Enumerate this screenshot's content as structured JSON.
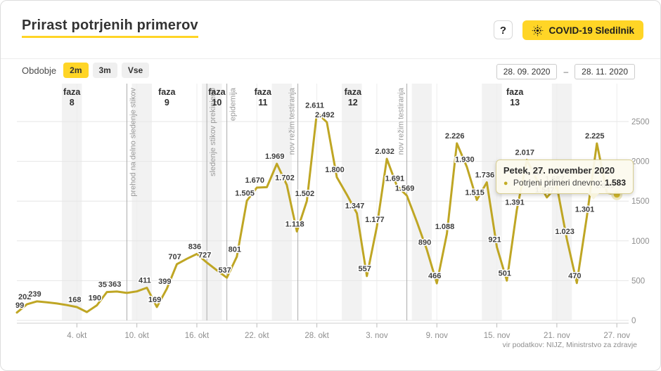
{
  "header": {
    "title": "Prirast potrjenih primerov",
    "help_label": "?",
    "brand_label": "COVID-19 Sledilnik"
  },
  "controls": {
    "period_label": "Obdobje",
    "periods": [
      "2m",
      "3m",
      "Vse"
    ],
    "active_period": "2m",
    "date_from": "28. 09. 2020",
    "date_separator": "–",
    "date_to": "28. 11. 2020"
  },
  "tooltip": {
    "title": "Petek, 27. november 2020",
    "series_label": "Potrjeni primeri dnevno:",
    "value": "1.583"
  },
  "footer": {
    "source": "vir podatkov: NIJZ, Ministrstvo za zdravje"
  },
  "colors": {
    "accent": "#ffd526",
    "line": "#bfa624",
    "marker": "#d4ba28",
    "marker_halo": "#ece5b4",
    "weekend_band": "#f2f2f2",
    "grid": "#e6e6e6",
    "vgrid": "#ededed",
    "phase_line": "#ababab",
    "axis_line": "#cfcfcf",
    "annotation_text": "#9a9a9a",
    "label_text": "#3d3d3d"
  },
  "chart_data": {
    "type": "line",
    "title": "Prirast potrjenih primerov",
    "series_name": "Potrjeni primeri dnevno",
    "x_tick_labels": [
      "4. okt",
      "10. okt",
      "16. okt",
      "22. okt",
      "28. okt",
      "3. nov",
      "9. nov",
      "15. nov",
      "21. nov",
      "27. nov"
    ],
    "x_tick_days": [
      6,
      12,
      18,
      24,
      30,
      36,
      42,
      48,
      54,
      60
    ],
    "y_ticks": [
      0,
      500,
      1000,
      1500,
      2000,
      2500
    ],
    "ylim": [
      0,
      2980
    ],
    "grid": true,
    "dates": [
      "2020-09-28",
      "2020-09-29",
      "2020-09-30",
      "2020-10-01",
      "2020-10-02",
      "2020-10-03",
      "2020-10-04",
      "2020-10-05",
      "2020-10-06",
      "2020-10-07",
      "2020-10-08",
      "2020-10-09",
      "2020-10-10",
      "2020-10-11",
      "2020-10-12",
      "2020-10-13",
      "2020-10-14",
      "2020-10-15",
      "2020-10-16",
      "2020-10-17",
      "2020-10-18",
      "2020-10-19",
      "2020-10-20",
      "2020-10-21",
      "2020-10-22",
      "2020-10-23",
      "2020-10-24",
      "2020-10-25",
      "2020-10-26",
      "2020-10-27",
      "2020-10-28",
      "2020-10-29",
      "2020-10-30",
      "2020-10-31",
      "2020-11-01",
      "2020-11-02",
      "2020-11-03",
      "2020-11-04",
      "2020-11-05",
      "2020-11-06",
      "2020-11-07",
      "2020-11-08",
      "2020-11-09",
      "2020-11-10",
      "2020-11-11",
      "2020-11-12",
      "2020-11-13",
      "2020-11-14",
      "2020-11-15",
      "2020-11-16",
      "2020-11-17",
      "2020-11-18",
      "2020-11-19",
      "2020-11-20",
      "2020-11-21",
      "2020-11-22",
      "2020-11-23",
      "2020-11-24",
      "2020-11-25",
      "2020-11-26",
      "2020-11-27"
    ],
    "values": [
      99,
      202,
      239,
      228,
      213,
      193,
      168,
      105,
      190,
      357,
      363,
      345,
      365,
      411,
      169,
      399,
      707,
      775,
      836,
      727,
      630,
      537,
      801,
      1505,
      1670,
      1675,
      1969,
      1702,
      1118,
      1502,
      2611,
      2492,
      1800,
      1580,
      1347,
      557,
      1177,
      2032,
      1691,
      1569,
      1240,
      890,
      466,
      1088,
      2226,
      1930,
      1515,
      1736,
      921,
      501,
      1391,
      2017,
      1767,
      1547,
      1687,
      1023,
      470,
      1301,
      2225,
      1605,
      1583
    ],
    "labels": [
      "99",
      "202",
      "239",
      "",
      "",
      "",
      "168",
      "",
      "190",
      "357",
      "363",
      "",
      "",
      "411",
      "169",
      "399",
      "707",
      "",
      "836",
      "727",
      "",
      "537",
      "801",
      "1.505",
      "1.670",
      "",
      "1.969",
      "1.702",
      "1.118",
      "1.502",
      "2.611",
      "2.492",
      "1.800",
      "",
      "1.347",
      "557",
      "1.177",
      "2.032",
      "1.691",
      "1.569",
      "",
      "890",
      "466",
      "1.088",
      "2.226",
      "1.930",
      "1.515",
      "1.736",
      "921",
      "501",
      "1.391",
      "2.017",
      "1.767",
      "1.547",
      "1.687",
      "1.023",
      "470",
      "1.301",
      "2.225",
      "1.605",
      ""
    ],
    "highlight_index": 60,
    "highlight_value_label": "1.583",
    "phase_lines": [
      {
        "day": 11,
        "label": "prehod na delno sledenje stikov",
        "side": "right"
      },
      {
        "day": 19,
        "label": "sledenje stikov prekinjeno",
        "side": "right"
      },
      {
        "day": 21,
        "label": "epidemija",
        "side": "right"
      },
      {
        "day": 28.1,
        "label": "nov režim testiranja",
        "side": "left"
      },
      {
        "day": 39,
        "label": "nov režim testiranja",
        "side": "left"
      }
    ],
    "phases": [
      {
        "line1": "faza",
        "line2": "8",
        "center_day": 5.5
      },
      {
        "line1": "faza",
        "line2": "9",
        "center_day": 15
      },
      {
        "line1": "faza",
        "line2": "10",
        "center_day": 20
      },
      {
        "line1": "faza",
        "line2": "11",
        "center_day": 24.6
      },
      {
        "line1": "faza",
        "line2": "12",
        "center_day": 33.6
      },
      {
        "line1": "faza",
        "line2": "13",
        "center_day": 49.8
      },
      {
        "line1": "faza",
        "line2": "8",
        "center_day": -999
      }
    ],
    "weekend_saturday_days": [
      5,
      12,
      19,
      26,
      33,
      40,
      47,
      54
    ],
    "legend_position": "none"
  }
}
